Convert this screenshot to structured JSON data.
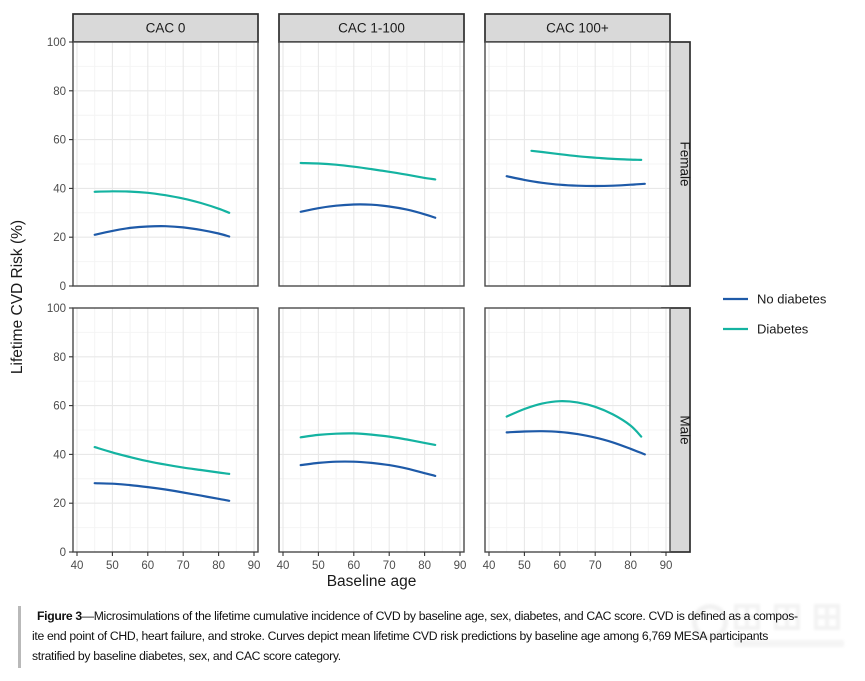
{
  "figure": {
    "y_axis_label": "Lifetime CVD Risk (%)",
    "x_axis_label": "Baseline age",
    "x_ticks": [
      40,
      50,
      60,
      70,
      80,
      90
    ],
    "y_ticks": [
      0,
      20,
      40,
      60,
      80,
      100
    ],
    "col_facets": [
      "CAC 0",
      "CAC 1-100",
      "CAC 100+"
    ],
    "row_facets": [
      "Female",
      "Male"
    ],
    "legend": [
      {
        "label": "No diabetes",
        "color": "#1e5aa8"
      },
      {
        "label": "Diabetes",
        "color": "#14b3a1"
      }
    ],
    "colors": {
      "strip_fill": "#d9d9d9",
      "strip_border": "#2e2e2e",
      "panel_border": "#4a4a4a",
      "grid_major": "#e8e8e8",
      "grid_minor": "#f4f4f4",
      "tick_text": "#4d4d4d",
      "axis_title_text": "#1a1a1a"
    }
  },
  "chart_data": {
    "type": "line",
    "title": "",
    "xlabel": "Baseline age",
    "ylabel": "Lifetime CVD Risk (%)",
    "xlim": [
      40,
      90
    ],
    "ylim": [
      0,
      100
    ],
    "grid": true,
    "legend_position": "right",
    "facets": [
      {
        "row": "Female",
        "col": "CAC 0",
        "series": [
          {
            "name": "No diabetes",
            "x": [
              45,
              50,
              55,
              60,
              65,
              70,
              75,
              80,
              83
            ],
            "y": [
              21.0,
              22.6,
              23.8,
              24.4,
              24.5,
              24.0,
              23.0,
              21.5,
              20.3
            ]
          },
          {
            "name": "Diabetes",
            "x": [
              45,
              50,
              55,
              60,
              65,
              70,
              75,
              80,
              83
            ],
            "y": [
              38.6,
              38.8,
              38.7,
              38.2,
              37.2,
              35.8,
              34.0,
              31.7,
              30.0
            ]
          }
        ]
      },
      {
        "row": "Female",
        "col": "CAC 1-100",
        "series": [
          {
            "name": "No diabetes",
            "x": [
              45,
              50,
              55,
              60,
              65,
              70,
              75,
              80,
              83
            ],
            "y": [
              30.4,
              31.9,
              32.9,
              33.4,
              33.3,
              32.6,
              31.3,
              29.4,
              28.0
            ]
          },
          {
            "name": "Diabetes",
            "x": [
              45,
              50,
              55,
              60,
              65,
              70,
              75,
              80,
              83
            ],
            "y": [
              50.4,
              50.2,
              49.7,
              48.9,
              47.9,
              46.8,
              45.6,
              44.3,
              43.7
            ]
          }
        ]
      },
      {
        "row": "Female",
        "col": "CAC 100+",
        "series": [
          {
            "name": "No diabetes",
            "x": [
              45,
              50,
              55,
              60,
              65,
              70,
              75,
              80,
              84
            ],
            "y": [
              45.0,
              43.5,
              42.3,
              41.5,
              41.1,
              41.0,
              41.1,
              41.5,
              41.9
            ]
          },
          {
            "name": "Diabetes",
            "x": [
              52,
              55,
              60,
              65,
              70,
              75,
              80,
              83
            ],
            "y": [
              55.4,
              54.9,
              54.0,
              53.2,
              52.6,
              52.1,
              51.8,
              51.7
            ]
          }
        ]
      },
      {
        "row": "Male",
        "col": "CAC 0",
        "series": [
          {
            "name": "No diabetes",
            "x": [
              45,
              50,
              55,
              60,
              65,
              70,
              75,
              80,
              83
            ],
            "y": [
              28.2,
              28.0,
              27.4,
              26.6,
              25.6,
              24.4,
              23.1,
              21.8,
              21.0
            ]
          },
          {
            "name": "Diabetes",
            "x": [
              45,
              50,
              55,
              60,
              65,
              70,
              75,
              80,
              83
            ],
            "y": [
              43.0,
              40.8,
              38.9,
              37.2,
              35.8,
              34.6,
              33.6,
              32.6,
              32.0
            ]
          }
        ]
      },
      {
        "row": "Male",
        "col": "CAC 1-100",
        "series": [
          {
            "name": "No diabetes",
            "x": [
              45,
              50,
              55,
              60,
              65,
              70,
              75,
              80,
              83
            ],
            "y": [
              35.6,
              36.5,
              37.0,
              37.0,
              36.5,
              35.6,
              34.2,
              32.3,
              31.2
            ]
          },
          {
            "name": "Diabetes",
            "x": [
              45,
              50,
              55,
              60,
              65,
              70,
              75,
              80,
              83
            ],
            "y": [
              47.0,
              48.0,
              48.5,
              48.6,
              48.1,
              47.3,
              46.1,
              44.7,
              43.9
            ]
          }
        ]
      },
      {
        "row": "Male",
        "col": "CAC 100+",
        "series": [
          {
            "name": "No diabetes",
            "x": [
              45,
              50,
              55,
              60,
              65,
              70,
              75,
              80,
              84
            ],
            "y": [
              49.0,
              49.4,
              49.5,
              49.2,
              48.3,
              46.9,
              44.9,
              42.3,
              40.0
            ]
          },
          {
            "name": "Diabetes",
            "x": [
              45,
              50,
              55,
              60,
              65,
              70,
              75,
              80,
              83
            ],
            "y": [
              55.5,
              58.6,
              60.8,
              61.8,
              61.3,
              59.5,
              56.4,
              51.8,
              47.3
            ]
          }
        ]
      }
    ]
  },
  "caption": {
    "figure_label": "Figure 3",
    "line1_rest": "—Microsimulations of the lifetime cumulative incidence of CVD by baseline age, sex, diabetes, and CAC score. CVD is defined as a compos-",
    "line2": "ite end point of CHD, heart failure, and stroke. Curves depict mean lifetime CVD risk predictions by baseline age among 6,769 MESA participants",
    "line3": "stratified by baseline diabetes, sex, and CAC score category."
  }
}
